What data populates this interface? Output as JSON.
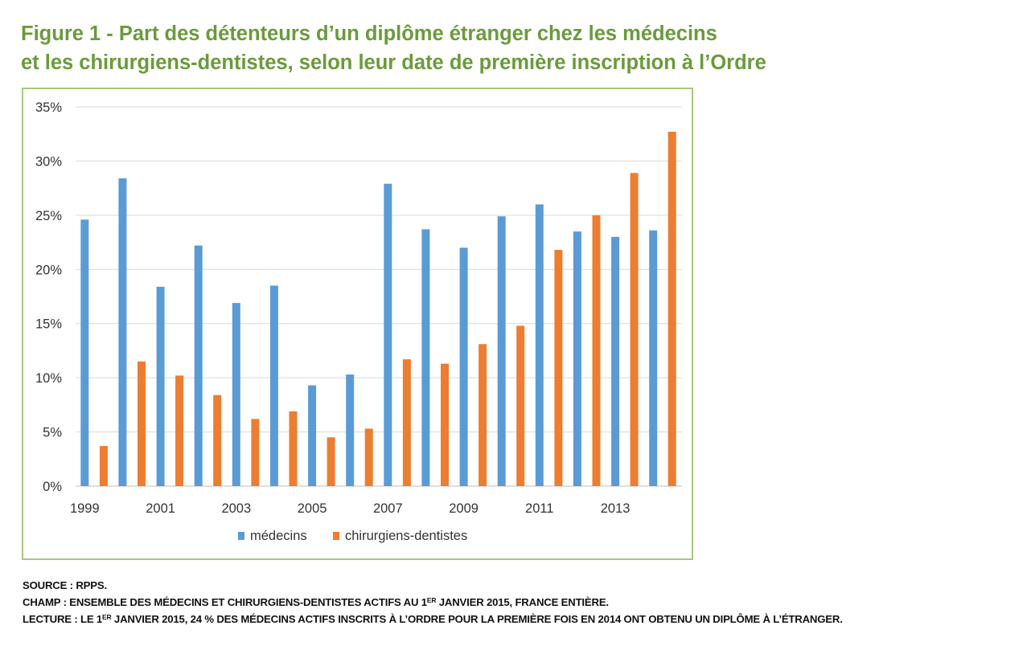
{
  "title": {
    "line1": "Figure 1 - Part des détenteurs d’un diplôme étranger chez les médecins",
    "line2": "et les chirurgiens-dentistes, selon leur date de première inscription à l’Ordre"
  },
  "notes": {
    "source": "SOURCE : RPPS.",
    "champ_pre": "CHAMP : ENSEMBLE DES MÉDECINS ET CHIRURGIENS-DENTISTES ACTIFS AU 1",
    "champ_sup": "ER",
    "champ_post": " JANVIER 2015, FRANCE ENTIÈRE.",
    "lecture_pre": "LECTURE : LE 1",
    "lecture_sup": "ER",
    "lecture_post": " JANVIER 2015, 24 % DES MÉDECINS ACTIFS INSCRITS À L’ORDRE POUR LA PREMIÈRE FOIS EN 2014 ONT OBTENU UN DIPLÔME À L’ÉTRANGER."
  },
  "chart_data": {
    "type": "bar",
    "categories": [
      "1999",
      "2000",
      "2001",
      "2002",
      "2003",
      "2004",
      "2005",
      "2006",
      "2007",
      "2008",
      "2009",
      "2010",
      "2011",
      "2012",
      "2013",
      "2014"
    ],
    "x_tick_labels": [
      "1999",
      "",
      "2001",
      "",
      "2003",
      "",
      "2005",
      "",
      "2007",
      "",
      "2009",
      "",
      "2011",
      "",
      "2013",
      ""
    ],
    "series": [
      {
        "name": "médecins",
        "color": "#5b9bd5",
        "values": [
          24.6,
          28.4,
          18.4,
          22.2,
          16.9,
          18.5,
          9.3,
          10.3,
          27.9,
          23.7,
          22.0,
          24.9,
          26.0,
          23.5,
          23.0,
          23.6
        ]
      },
      {
        "name": "chirurgiens-dentistes",
        "color": "#ed7d31",
        "values": [
          3.7,
          11.5,
          10.2,
          8.4,
          6.2,
          6.9,
          4.5,
          5.3,
          11.7,
          11.3,
          13.1,
          14.8,
          21.8,
          25.0,
          28.9,
          32.7
        ]
      }
    ],
    "ylim": [
      0,
      35
    ],
    "yticks": [
      0,
      5,
      10,
      15,
      20,
      25,
      30,
      35
    ],
    "y_tick_format": "%",
    "grid": true,
    "legend_position": "bottom",
    "xlabel": "",
    "ylabel": ""
  }
}
